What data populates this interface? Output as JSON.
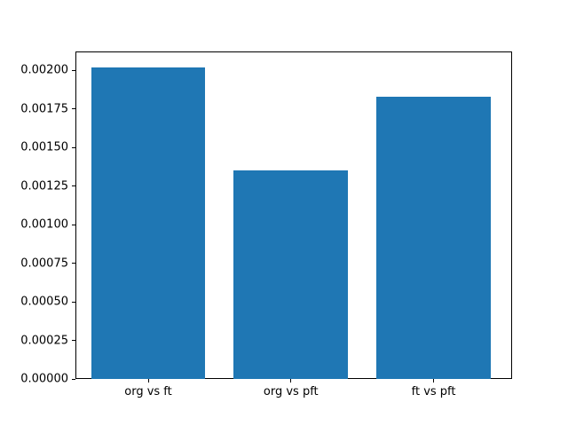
{
  "figure": {
    "background": "#ffffff"
  },
  "chart_data": {
    "type": "bar",
    "title": "",
    "xlabel": "",
    "ylabel": "",
    "categories": [
      "org vs ft",
      "org vs pft",
      "ft vs pft"
    ],
    "values": [
      0.00202,
      0.00135,
      0.00183
    ],
    "bar_color": "#1f77b4",
    "bar_width": 0.8,
    "xlim": [
      -0.51,
      2.55
    ],
    "ylim": [
      0,
      0.002121
    ],
    "yticks": [
      0.0,
      0.00025,
      0.0005,
      0.00075,
      0.001,
      0.00125,
      0.0015,
      0.00175,
      0.002
    ],
    "ytick_labels": [
      "0.00000",
      "0.00025",
      "0.00050",
      "0.00075",
      "0.00100",
      "0.00125",
      "0.00150",
      "0.00175",
      "0.00200"
    ],
    "grid": false,
    "legend": "none",
    "axis_color": "#000000",
    "text_color": "#000000"
  }
}
